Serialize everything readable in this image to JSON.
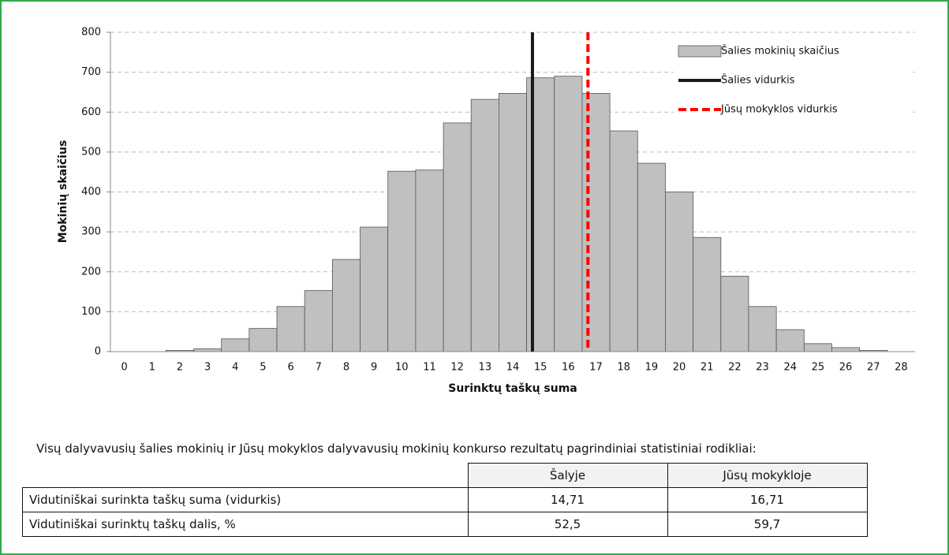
{
  "chart_data": {
    "type": "histogram",
    "xlabel": "Surinktų taškų suma",
    "ylabel": "Mokinių skaičius",
    "x": [
      0,
      1,
      2,
      3,
      4,
      5,
      6,
      7,
      8,
      9,
      10,
      11,
      12,
      13,
      14,
      15,
      16,
      17,
      18,
      19,
      20,
      21,
      22,
      23,
      24,
      25,
      26,
      27,
      28
    ],
    "series": [
      {
        "name": "Šalies mokinių skaičius",
        "color": "#c0c0c0",
        "values": [
          0,
          0,
          3,
          7,
          32,
          58,
          113,
          153,
          231,
          312,
          452,
          455,
          573,
          632,
          647,
          686,
          690,
          647,
          553,
          472,
          400,
          286,
          189,
          113,
          55,
          20,
          10,
          3,
          0
        ]
      }
    ],
    "reference_lines": [
      {
        "name": "Šalies vidurkis",
        "value": 14.71,
        "color": "#1a1a1a",
        "dash": false
      },
      {
        "name": "Jūsų mokyklos vidurkis",
        "value": 16.71,
        "color": "#ff0000",
        "dash": true
      }
    ],
    "xlim": [
      -0.5,
      28.5
    ],
    "xticks": [
      0,
      1,
      2,
      3,
      4,
      5,
      6,
      7,
      8,
      9,
      10,
      11,
      12,
      13,
      14,
      15,
      16,
      17,
      18,
      19,
      20,
      21,
      22,
      23,
      24,
      25,
      26,
      27,
      28
    ],
    "ylim": [
      0,
      800
    ],
    "yticks": [
      0,
      100,
      200,
      300,
      400,
      500,
      600,
      700,
      800
    ],
    "grid": true,
    "legend": "upper right"
  },
  "paragraph": "Visų dalyvavusių šalies mokinių ir Jūsų mokyklos dalyvavusių mokinių konkurso rezultatų pagrindiniai statistiniai rodikliai:",
  "table": {
    "header": [
      "Šalyje",
      "Jūsų mokykloje"
    ],
    "rows": [
      [
        "Vidutiniškai surinkta taškų suma (vidurkis)",
        "14,71",
        "16,71"
      ],
      [
        "Vidutiniškai surinktų taškų dalis, %",
        "52,5",
        "59,7"
      ]
    ]
  }
}
